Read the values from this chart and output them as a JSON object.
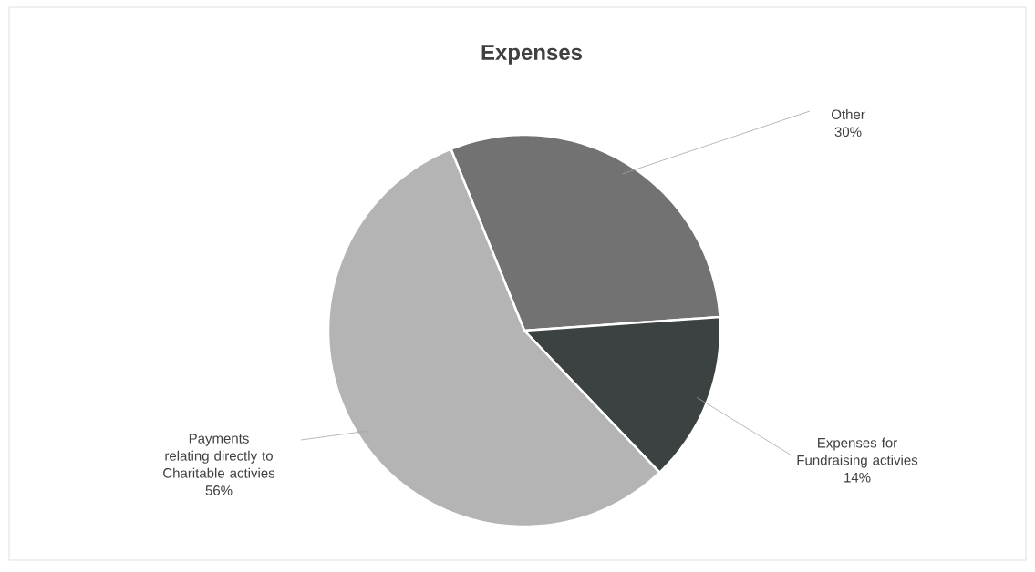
{
  "chart_data": {
    "type": "pie",
    "title": "Expenses",
    "categories": [
      "Other",
      "Expenses for Fundraising activies",
      "Payments relating directly to Charitable activies"
    ],
    "values": [
      30,
      14,
      56
    ],
    "colors": [
      "#727272",
      "#3c4242",
      "#b4b4b4"
    ],
    "value_labels": [
      "30%",
      "14%",
      "56%"
    ]
  }
}
